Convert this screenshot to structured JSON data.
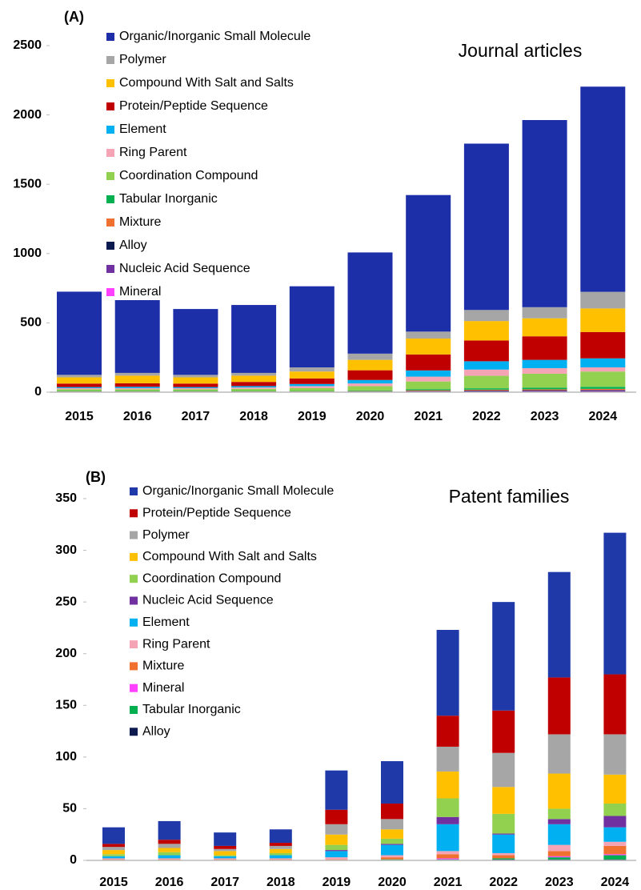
{
  "chart_data": [
    {
      "type": "bar",
      "stacked": true,
      "panel_label": "(A)",
      "annotation": "Journal articles",
      "categories": [
        "2015",
        "2016",
        "2017",
        "2018",
        "2019",
        "2020",
        "2021",
        "2022",
        "2023",
        "2024"
      ],
      "ylim": [
        0,
        2500
      ],
      "yticks": [
        0,
        500,
        1000,
        1500,
        2000,
        2500
      ],
      "grid": false,
      "series": [
        {
          "name": "Organic/Inorganic Small Molecule",
          "color": "#1c2fa8",
          "values": [
            600,
            525,
            475,
            490,
            585,
            730,
            985,
            1200,
            1350,
            1480
          ]
        },
        {
          "name": "Polymer",
          "color": "#a6a6a6",
          "values": [
            18,
            20,
            18,
            20,
            30,
            45,
            50,
            80,
            80,
            120
          ]
        },
        {
          "name": "Compound With Salt and Salts",
          "color": "#ffc000",
          "values": [
            45,
            55,
            45,
            45,
            50,
            75,
            115,
            140,
            130,
            170
          ]
        },
        {
          "name": "Protein/Peptide Sequence",
          "color": "#c00000",
          "values": [
            25,
            25,
            25,
            30,
            40,
            70,
            115,
            150,
            170,
            190
          ]
        },
        {
          "name": "Element",
          "color": "#00b0f0",
          "values": [
            8,
            10,
            8,
            10,
            15,
            25,
            45,
            60,
            60,
            65
          ]
        },
        {
          "name": "Ring Parent",
          "color": "#f4a4b4",
          "values": [
            8,
            8,
            8,
            10,
            15,
            20,
            35,
            45,
            40,
            30
          ]
        },
        {
          "name": "Coordination Compound",
          "color": "#92d050",
          "values": [
            12,
            12,
            12,
            15,
            20,
            30,
            55,
            90,
            100,
            110
          ]
        },
        {
          "name": "Tabular Inorganic",
          "color": "#00b050",
          "values": [
            3,
            3,
            3,
            3,
            3,
            5,
            8,
            10,
            12,
            15
          ]
        },
        {
          "name": "Mixture",
          "color": "#f07030",
          "values": [
            2,
            2,
            2,
            2,
            2,
            3,
            5,
            6,
            7,
            8
          ]
        },
        {
          "name": "Alloy",
          "color": "#0c1a50",
          "values": [
            1,
            1,
            1,
            1,
            1,
            1,
            2,
            3,
            3,
            3
          ]
        },
        {
          "name": "Nucleic Acid Sequence",
          "color": "#7030a0",
          "values": [
            2,
            2,
            2,
            2,
            2,
            3,
            5,
            7,
            8,
            10
          ]
        },
        {
          "name": "Mineral",
          "color": "#ff40ff",
          "values": [
            1,
            1,
            1,
            1,
            1,
            1,
            2,
            2,
            3,
            3
          ]
        }
      ]
    },
    {
      "type": "bar",
      "stacked": true,
      "panel_label": "(B)",
      "annotation": "Patent families",
      "categories": [
        "2015",
        "2016",
        "2017",
        "2018",
        "2019",
        "2020",
        "2021",
        "2022",
        "2023",
        "2024"
      ],
      "ylim": [
        0,
        350
      ],
      "yticks": [
        0,
        50,
        100,
        150,
        200,
        250,
        300,
        350
      ],
      "grid": false,
      "series": [
        {
          "name": "Organic/Inorganic Small Molecule",
          "color": "#1f3aa8",
          "values": [
            16,
            18,
            13,
            13,
            38,
            41,
            83,
            105,
            102,
            137
          ]
        },
        {
          "name": "Protein/Peptide Sequence",
          "color": "#c00000",
          "values": [
            3,
            4,
            3,
            3,
            14,
            15,
            30,
            41,
            55,
            58
          ]
        },
        {
          "name": "Polymer",
          "color": "#a6a6a6",
          "values": [
            3,
            4,
            2,
            3,
            10,
            10,
            24,
            33,
            38,
            39
          ]
        },
        {
          "name": "Compound With Salt and Salts",
          "color": "#ffc000",
          "values": [
            4,
            4,
            4,
            4,
            10,
            9,
            26,
            26,
            34,
            28
          ]
        },
        {
          "name": "Coordination Compound",
          "color": "#92d050",
          "values": [
            2,
            3,
            1,
            2,
            5,
            5,
            18,
            19,
            10,
            12
          ]
        },
        {
          "name": "Nucleic Acid Sequence",
          "color": "#7030a0",
          "values": [
            0,
            0,
            0,
            0,
            1,
            1,
            7,
            1,
            5,
            11
          ]
        },
        {
          "name": "Element",
          "color": "#00b0f0",
          "values": [
            2,
            3,
            2,
            3,
            6,
            10,
            26,
            18,
            20,
            14
          ]
        },
        {
          "name": "Ring Parent",
          "color": "#f4a4b4",
          "values": [
            1,
            1,
            1,
            1,
            2,
            2,
            3,
            2,
            6,
            4
          ]
        },
        {
          "name": "Mixture",
          "color": "#f07030",
          "values": [
            1,
            1,
            1,
            1,
            1,
            2,
            4,
            3,
            5,
            8
          ]
        },
        {
          "name": "Mineral",
          "color": "#ff40ff",
          "values": [
            0,
            0,
            0,
            0,
            0,
            0,
            1,
            0,
            1,
            1
          ]
        },
        {
          "name": "Tabular Inorganic",
          "color": "#00b050",
          "values": [
            0,
            0,
            0,
            0,
            0,
            1,
            1,
            1,
            2,
            4
          ]
        },
        {
          "name": "Alloy",
          "color": "#0c1a50",
          "values": [
            0,
            0,
            0,
            0,
            0,
            0,
            0,
            1,
            1,
            1
          ]
        }
      ]
    }
  ]
}
